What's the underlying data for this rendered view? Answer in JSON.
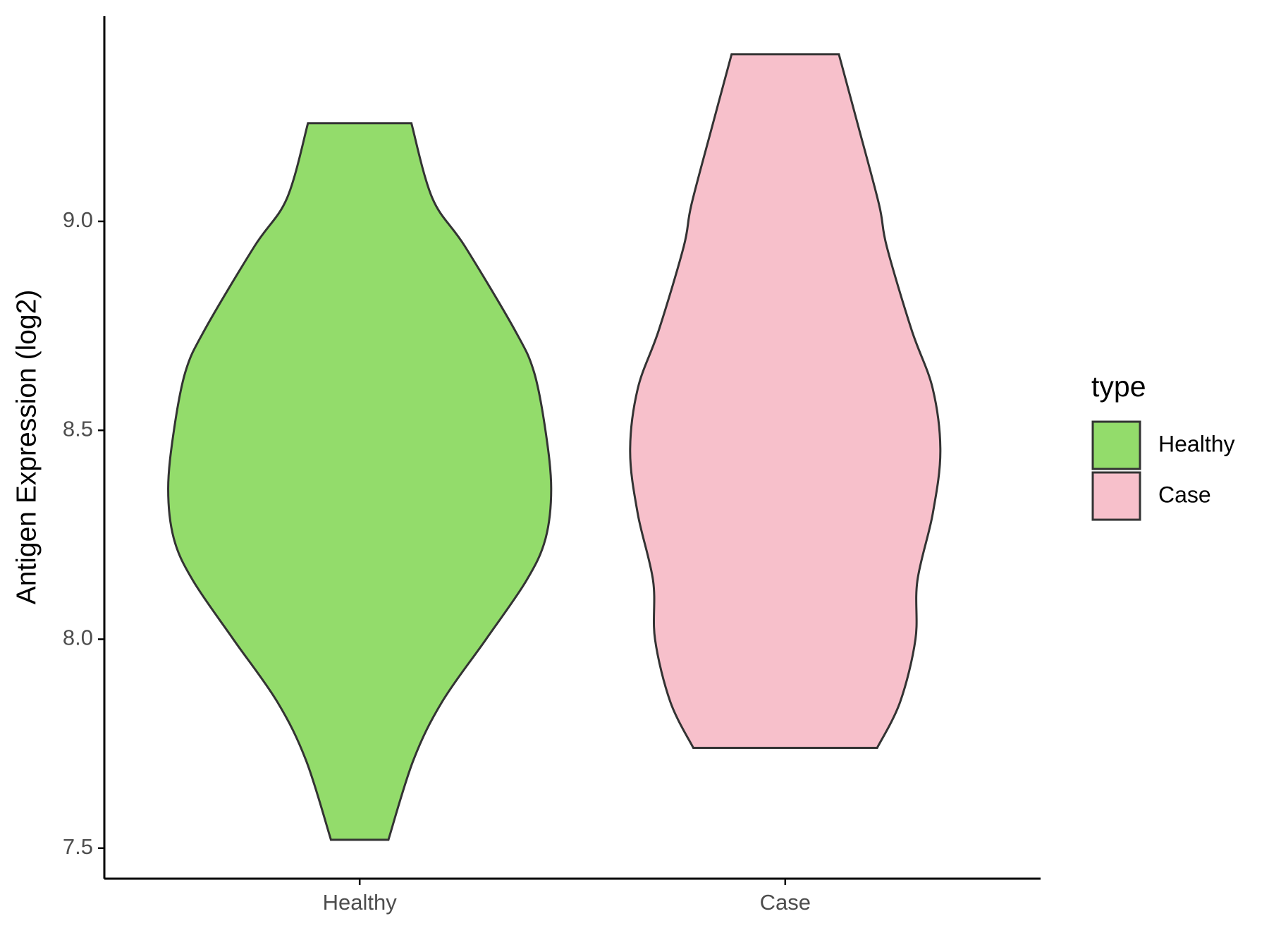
{
  "chart_data": {
    "type": "violin",
    "y_label": "Antigen Expression (log2)",
    "categories": [
      "Healthy",
      "Case"
    ],
    "legend_title": "type",
    "legend_position": "right",
    "ylim": [
      7.427,
      9.491
    ],
    "yticks": [
      7.5,
      {
        "value": 8,
        "label": "8.0"
      },
      8.5,
      {
        "value": 9,
        "label": "9.0"
      }
    ],
    "series": [
      {
        "name": "Healthy",
        "color": "#93dc6b",
        "y": [
          9.235,
          9.055,
          8.94,
          8.74,
          8.64,
          8.5,
          8.36,
          8.24,
          8.14,
          8.0,
          7.85,
          7.71,
          7.52
        ],
        "density": [
          0.27,
          0.38,
          0.55,
          0.81,
          0.91,
          0.97,
          1.0,
          0.97,
          0.87,
          0.66,
          0.43,
          0.28,
          0.15
        ]
      },
      {
        "name": "Case",
        "color": "#f7c0cb",
        "y": [
          9.4,
          9.23,
          9.04,
          8.94,
          8.74,
          8.6,
          8.45,
          8.3,
          8.14,
          8.0,
          7.85,
          7.74
        ],
        "density": [
          0.28,
          0.38,
          0.49,
          0.53,
          0.66,
          0.77,
          0.81,
          0.77,
          0.69,
          0.68,
          0.6,
          0.48
        ]
      }
    ]
  }
}
